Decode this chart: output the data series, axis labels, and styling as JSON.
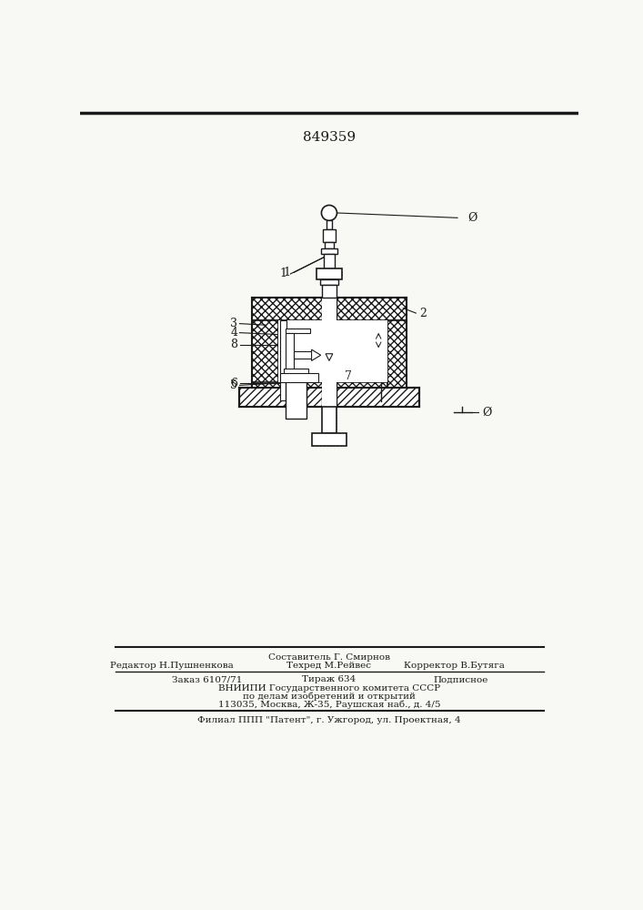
{
  "patent_number": "849359",
  "bg_color": "#f8f8f5",
  "lc": "#1a1a1a",
  "footer_line1": "Составитель Г. Смирнов",
  "footer_line2_l": "Редактор Н.Пушненкова",
  "footer_line2_m": "Техред М.Рейвес",
  "footer_line2_r": "Корректор В.Бутяга",
  "footer_line3_l": "Заказ 6107/71",
  "footer_line3_m": "Тираж 634",
  "footer_line3_r": "Подписное",
  "footer_line4": "ВНИИПИ Государственного комитета СССР",
  "footer_line5": "по делам изобретений и открытий",
  "footer_line6": "113035, Москва, Ж-35, Раушская наб., д. 4/5",
  "footer_line7": "Филиал ППП \"Патент\", г. Ужгород, ул. Проектная, 4"
}
